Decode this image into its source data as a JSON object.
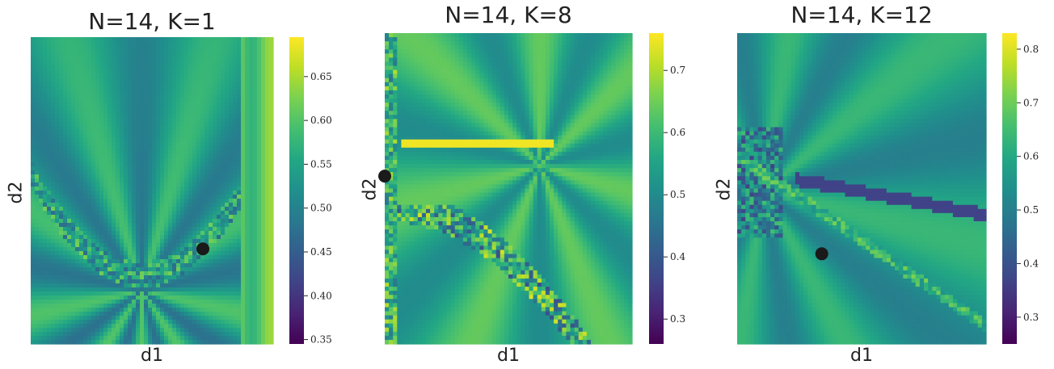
{
  "chart_data": [
    {
      "type": "heatmap",
      "title": "N=14, K=1",
      "xlabel": "d1",
      "ylabel": "d2",
      "colorbar": {
        "ticks": [
          0.35,
          0.4,
          0.45,
          0.5,
          0.55,
          0.6,
          0.65
        ],
        "tick_labels": [
          "0.35",
          "0.40",
          "0.45",
          "0.50",
          "0.55",
          "0.60",
          "0.65"
        ],
        "vmin": 0.345,
        "vmax": 0.695
      },
      "marker": {
        "x": 0.71,
        "y": 0.31
      },
      "grid": false
    },
    {
      "type": "heatmap",
      "title": "N=14, K=8",
      "xlabel": "d1",
      "ylabel": "d2",
      "colorbar": {
        "ticks": [
          0.3,
          0.4,
          0.5,
          0.6,
          0.7
        ],
        "tick_labels": [
          "0.3",
          "0.4",
          "0.5",
          "0.6",
          "0.7"
        ],
        "vmin": 0.26,
        "vmax": 0.76
      },
      "marker": {
        "x": 0.0,
        "y": 0.54
      },
      "grid": false
    },
    {
      "type": "heatmap",
      "title": "N=14, K=12",
      "xlabel": "d1",
      "ylabel": "d2",
      "colorbar": {
        "ticks": [
          0.3,
          0.4,
          0.5,
          0.6,
          0.7,
          0.8
        ],
        "tick_labels": [
          "0.3",
          "0.4",
          "0.5",
          "0.6",
          "0.7",
          "0.8"
        ],
        "vmin": 0.25,
        "vmax": 0.83
      },
      "marker": {
        "x": 0.34,
        "y": 0.29
      },
      "grid": false
    }
  ],
  "colormap": "viridis"
}
